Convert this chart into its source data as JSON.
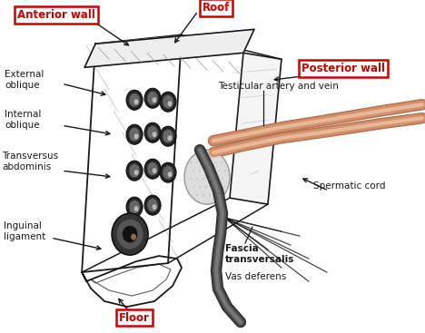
{
  "bg_color": "#ffffff",
  "fig_width": 4.68,
  "fig_height": 3.67,
  "dpi": 100,
  "labels": {
    "anterior_wall": "Anterior wall",
    "roof": "Roof",
    "posterior_wall": "Posterior wall",
    "floor": "Floor",
    "external_oblique": "External\noblique",
    "internal_oblique": "Internal\noblique",
    "transversus": "Transversus\nabdominis",
    "inguinal_ligament": "Inguinal\nligament",
    "testicular": "Testicular artery and vein",
    "spermatic_cord": "Spermatic cord",
    "fascia": "Fascia\ntransversalis",
    "vas_deferens": "Vas deferens"
  },
  "red_box_color": "#cc0000",
  "black_color": "#1a1a1a",
  "skin_color": "#d4906a",
  "skin_light": "#e8b898",
  "skin_dark": "#b07050",
  "gray_dark": "#444444",
  "gray_mid": "#888888",
  "gray_light": "#cccccc",
  "box_bg": "#ffffff"
}
